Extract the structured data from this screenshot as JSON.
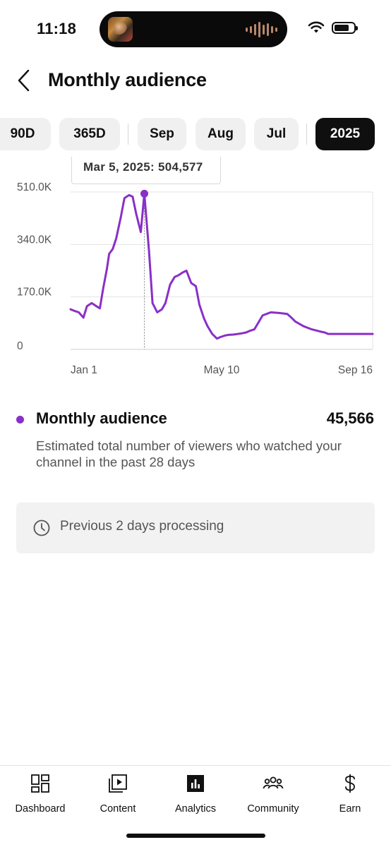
{
  "status_bar": {
    "time": "11:18"
  },
  "header": {
    "title": "Monthly audience"
  },
  "period_chips": [
    {
      "label": "90D",
      "selected": false
    },
    {
      "label": "365D",
      "selected": false
    },
    {
      "label": "Sep",
      "selected": false
    },
    {
      "label": "Aug",
      "selected": false
    },
    {
      "label": "Jul",
      "selected": false
    },
    {
      "label": "2025",
      "selected": true
    }
  ],
  "chart_data": {
    "type": "line",
    "tooltip": "Mar 5, 2025: 504,577",
    "x_tick_labels": [
      "Jan 1",
      "May 10",
      "Sep 16"
    ],
    "y_tick_labels": [
      "510.0K",
      "340.0K",
      "170.0K",
      "0"
    ],
    "ylim": [
      0,
      510000
    ],
    "grid": true,
    "line_color": "#8a2fc7",
    "series": [
      {
        "x": [
          "2025-01-01",
          "2025-01-04",
          "2025-01-08",
          "2025-01-12",
          "2025-01-15",
          "2025-01-19",
          "2025-01-23",
          "2025-01-26",
          "2025-01-29",
          "2025-02-01",
          "2025-02-03",
          "2025-02-06",
          "2025-02-09",
          "2025-02-13",
          "2025-02-16",
          "2025-02-20",
          "2025-02-23",
          "2025-02-26",
          "2025-03-02",
          "2025-03-05",
          "2025-03-09",
          "2025-03-12",
          "2025-03-16",
          "2025-03-20",
          "2025-03-23",
          "2025-03-27",
          "2025-03-31",
          "2025-04-03",
          "2025-04-07",
          "2025-04-10",
          "2025-04-14",
          "2025-04-18",
          "2025-04-21",
          "2025-04-25",
          "2025-04-28",
          "2025-05-02",
          "2025-05-06",
          "2025-05-09",
          "2025-05-13",
          "2025-05-16",
          "2025-05-20",
          "2025-05-24",
          "2025-05-27",
          "2025-05-31",
          "2025-06-03",
          "2025-06-07",
          "2025-06-14",
          "2025-06-21",
          "2025-06-28",
          "2025-07-05",
          "2025-07-08",
          "2025-07-12",
          "2025-07-19",
          "2025-07-26",
          "2025-08-02",
          "2025-08-06",
          "2025-08-09",
          "2025-08-16",
          "2025-08-20",
          "2025-08-23",
          "2025-08-27",
          "2025-08-30",
          "2025-09-03",
          "2025-09-06",
          "2025-09-10",
          "2025-09-13",
          "2025-09-16"
        ],
        "y": [
          130000,
          125000,
          120000,
          103000,
          140000,
          150000,
          140000,
          133000,
          200000,
          260000,
          310000,
          325000,
          360000,
          430000,
          490000,
          500000,
          495000,
          440000,
          380000,
          504577,
          320000,
          150000,
          120000,
          130000,
          150000,
          210000,
          235000,
          240000,
          250000,
          255000,
          215000,
          205000,
          145000,
          100000,
          75000,
          50000,
          35000,
          40000,
          45000,
          47000,
          48000,
          50000,
          52000,
          55000,
          60000,
          65000,
          110000,
          120000,
          118000,
          115000,
          105000,
          90000,
          75000,
          65000,
          58000,
          55000,
          50000,
          50000,
          50000,
          50000,
          50000,
          50000,
          50000,
          50000,
          50000,
          50000,
          50000
        ]
      }
    ]
  },
  "metric": {
    "label": "Monthly audience",
    "value": "45,566",
    "description": "Estimated total number of viewers who watched your channel in the past 28 days",
    "dot_color": "#8a2fc7"
  },
  "notice": {
    "text": "Previous 2 days processing",
    "icon": "clock-icon"
  },
  "bottom_nav": [
    {
      "label": "Dashboard",
      "icon": "dashboard-icon"
    },
    {
      "label": "Content",
      "icon": "content-icon"
    },
    {
      "label": "Analytics",
      "icon": "analytics-icon",
      "active": true
    },
    {
      "label": "Community",
      "icon": "community-icon"
    },
    {
      "label": "Earn",
      "icon": "earn-icon"
    }
  ]
}
